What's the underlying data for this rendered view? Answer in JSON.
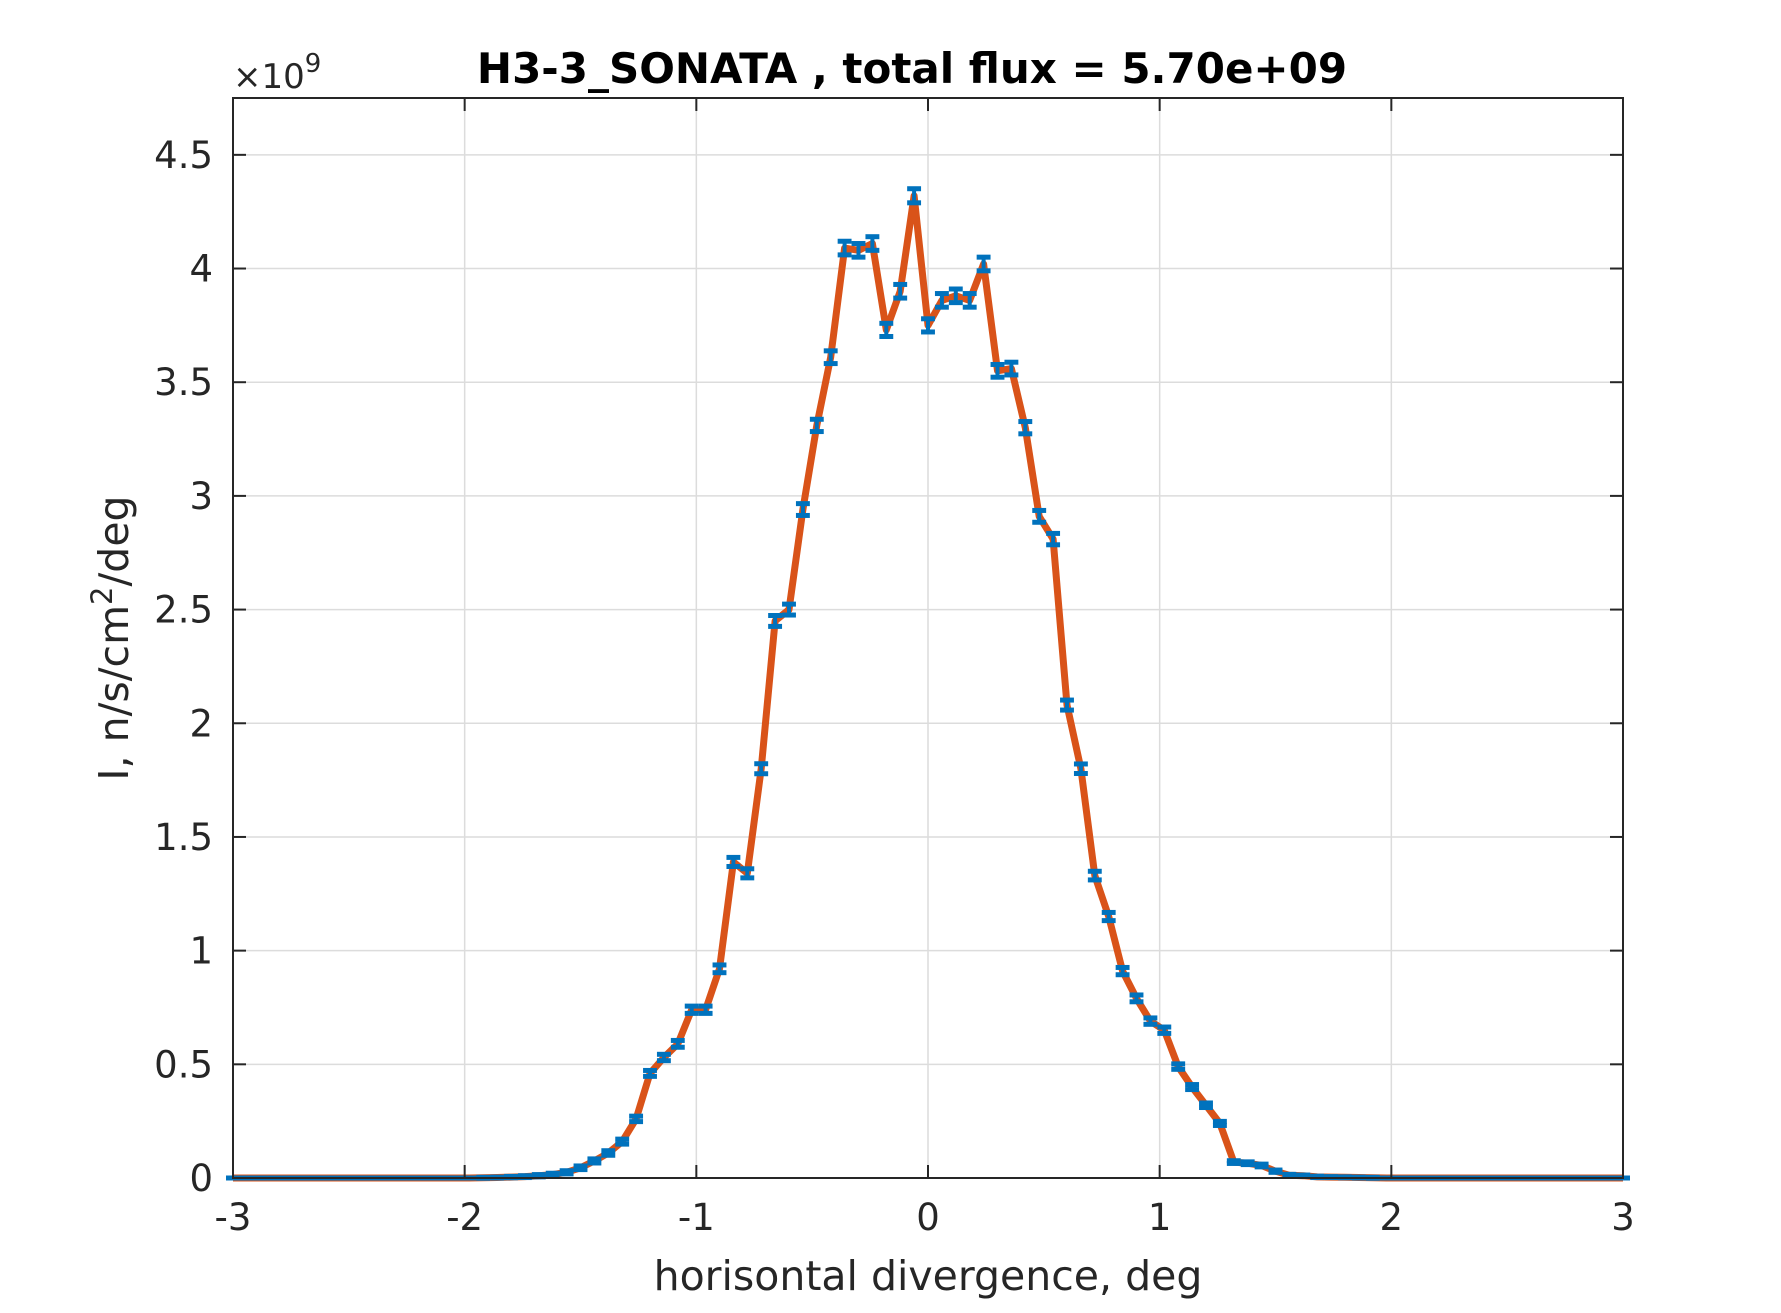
{
  "chart_data": {
    "type": "line",
    "title": "H3-3_SONATA , total flux =  5.70e+09",
    "xlabel": "horisontal divergence, deg",
    "ylabel": {
      "base": "I, n/s/cm",
      "sup": "2",
      "suffix": "/deg"
    },
    "y_multiplier": {
      "prefix": "×10",
      "exponent": "9"
    },
    "xlim": [
      -3,
      3
    ],
    "ylim": [
      0,
      4.75
    ],
    "x_ticks": [
      -3,
      -2,
      -1,
      0,
      1,
      2,
      3
    ],
    "x_tick_labels": [
      "-3",
      "-2",
      "-1",
      "0",
      "1",
      "2",
      "3"
    ],
    "y_ticks": [
      0,
      0.5,
      1,
      1.5,
      2,
      2.5,
      3,
      3.5,
      4,
      4.5
    ],
    "y_tick_labels": [
      "0",
      "0.5",
      "1",
      "1.5",
      "2",
      "2.5",
      "3",
      "3.5",
      "4",
      "4.5"
    ],
    "grid": true,
    "colors": {
      "line": "#D95319",
      "errorbar": "#0072BD",
      "grid": "#DCDCDC",
      "axis": "#262626"
    },
    "series": [
      {
        "line": "solid",
        "errorbar_halfwidth": 0.03,
        "x": [
          -3.0,
          -2.94,
          -2.88,
          -2.82,
          -2.76,
          -2.7,
          -2.64,
          -2.58,
          -2.52,
          -2.46,
          -2.4,
          -2.34,
          -2.28,
          -2.22,
          -2.16,
          -2.1,
          -2.04,
          -1.98,
          -1.92,
          -1.86,
          -1.8,
          -1.74,
          -1.68,
          -1.62,
          -1.56,
          -1.5,
          -1.44,
          -1.38,
          -1.32,
          -1.26,
          -1.2,
          -1.14,
          -1.08,
          -1.02,
          -0.96,
          -0.9,
          -0.84,
          -0.78,
          -0.72,
          -0.66,
          -0.6,
          -0.54,
          -0.48,
          -0.42,
          -0.36,
          -0.3,
          -0.24,
          -0.18,
          -0.12,
          -0.06,
          0.0,
          0.06,
          0.12,
          0.18,
          0.24,
          0.3,
          0.36,
          0.42,
          0.48,
          0.54,
          0.6,
          0.66,
          0.72,
          0.78,
          0.84,
          0.9,
          0.96,
          1.02,
          1.08,
          1.14,
          1.2,
          1.26,
          1.32,
          1.38,
          1.44,
          1.5,
          1.56,
          1.62,
          1.68,
          1.74,
          1.8,
          1.86,
          1.92,
          1.98,
          2.04,
          2.1,
          2.16,
          2.22,
          2.28,
          2.34,
          2.4,
          2.46,
          2.52,
          2.58,
          2.64,
          2.7,
          2.76,
          2.82,
          2.88,
          2.94,
          3.0
        ],
        "y": [
          0,
          0,
          0,
          0,
          0,
          0,
          0,
          0,
          0,
          0,
          0,
          0,
          0,
          0,
          0,
          0,
          0,
          0,
          0.001,
          0.002,
          0.004,
          0.006,
          0.01,
          0.015,
          0.025,
          0.045,
          0.075,
          0.11,
          0.16,
          0.26,
          0.46,
          0.53,
          0.59,
          0.74,
          0.74,
          0.92,
          1.39,
          1.34,
          1.8,
          2.45,
          2.5,
          2.94,
          3.31,
          3.61,
          4.09,
          4.08,
          4.11,
          3.73,
          3.9,
          4.32,
          3.75,
          3.86,
          3.88,
          3.86,
          4.02,
          3.55,
          3.56,
          3.3,
          2.91,
          2.81,
          2.08,
          1.8,
          1.33,
          1.15,
          0.91,
          0.79,
          0.69,
          0.65,
          0.49,
          0.4,
          0.32,
          0.24,
          0.07,
          0.065,
          0.055,
          0.03,
          0.012,
          0.01,
          0.005,
          0.004,
          0.003,
          0.002,
          0.001,
          0,
          0,
          0,
          0,
          0,
          0,
          0,
          0,
          0,
          0,
          0,
          0,
          0,
          0,
          0,
          0,
          0,
          0
        ],
        "err": [
          0,
          0,
          0,
          0,
          0,
          0,
          0,
          0,
          0,
          0,
          0,
          0,
          0,
          0,
          0,
          0,
          0,
          0,
          0.002,
          0.002,
          0.003,
          0.004,
          0.005,
          0.006,
          0.007,
          0.008,
          0.009,
          0.01,
          0.011,
          0.012,
          0.013,
          0.014,
          0.015,
          0.016,
          0.016,
          0.017,
          0.02,
          0.02,
          0.022,
          0.024,
          0.024,
          0.026,
          0.027,
          0.028,
          0.03,
          0.03,
          0.03,
          0.029,
          0.03,
          0.031,
          0.029,
          0.03,
          0.03,
          0.03,
          0.03,
          0.028,
          0.028,
          0.027,
          0.026,
          0.025,
          0.022,
          0.021,
          0.019,
          0.018,
          0.016,
          0.015,
          0.014,
          0.014,
          0.012,
          0.011,
          0.01,
          0.009,
          0.006,
          0.006,
          0.006,
          0.005,
          0.004,
          0.003,
          0.003,
          0.002,
          0.002,
          0.002,
          0.002,
          0,
          0,
          0,
          0,
          0,
          0,
          0,
          0,
          0,
          0,
          0,
          0,
          0,
          0,
          0,
          0,
          0,
          0
        ]
      }
    ]
  }
}
